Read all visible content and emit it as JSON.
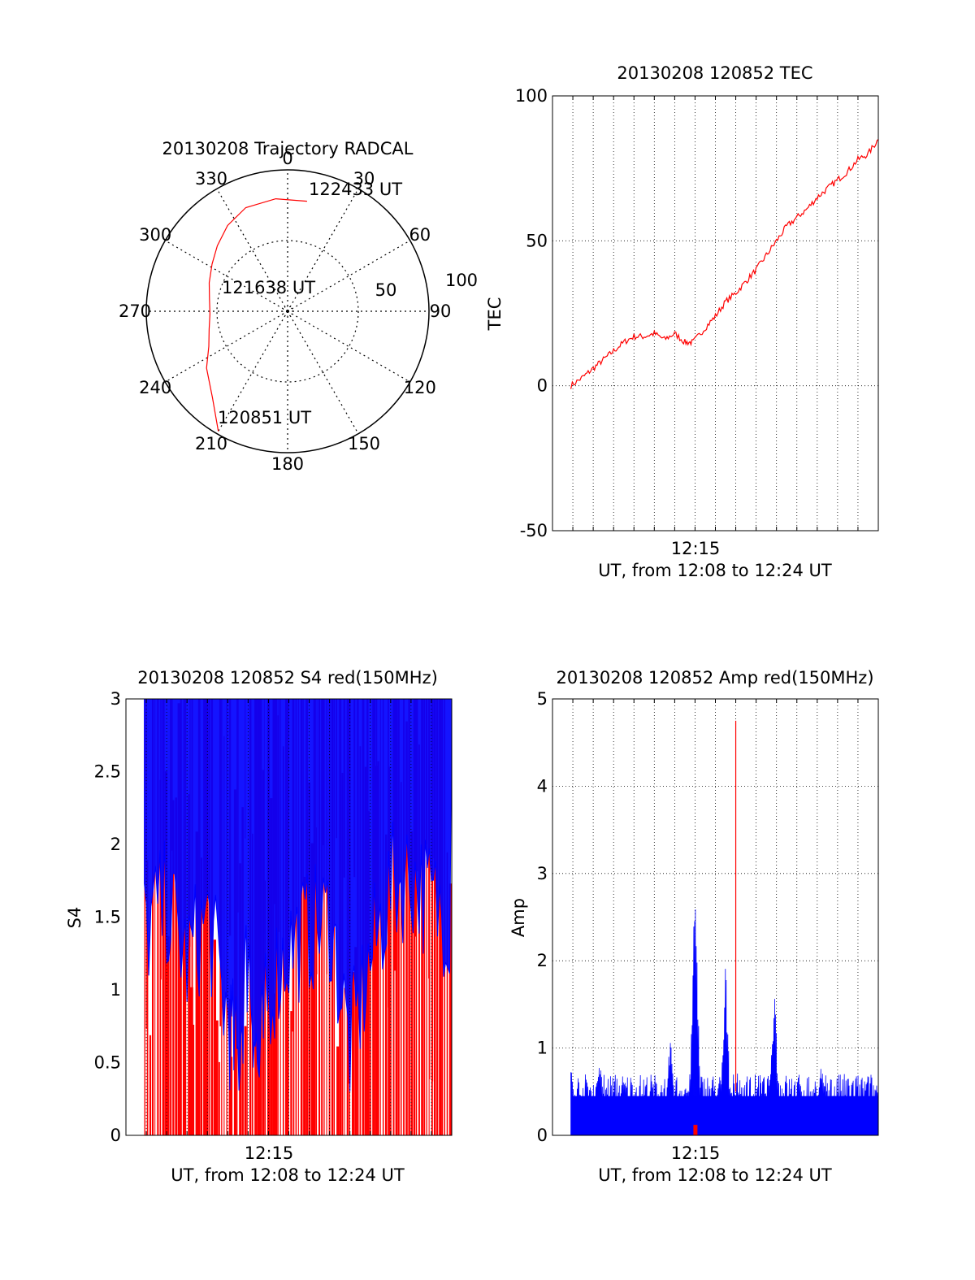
{
  "colors": {
    "primary": "#ff0000",
    "secondary": "#0000ff",
    "axis": "#000000",
    "grid": "#000000"
  },
  "chart_data": [
    {
      "type": "polar",
      "title": "20130208 Trajectory RADCAL",
      "azimuth_labels": [
        "0",
        "30",
        "60",
        "90",
        "120",
        "150",
        "180",
        "210",
        "240",
        "270",
        "300",
        "330"
      ],
      "radial_ticks": [
        "50",
        "100"
      ],
      "rlim": [
        0,
        100
      ],
      "grid": true,
      "annotations": [
        {
          "text": "122433 UT",
          "azimuth": 11,
          "range": 80
        },
        {
          "text": "121638 UT",
          "azimuth": 285,
          "range": 51
        },
        {
          "text": "120851 UT",
          "azimuth": 210,
          "range": 98
        }
      ],
      "series": [
        {
          "color": "#ff0000",
          "points": [
            [
              10,
              79
            ],
            [
              -6,
              80
            ],
            [
              -22,
              79
            ],
            [
              -35,
              74
            ],
            [
              -47,
              68
            ],
            [
              -58,
              63
            ],
            [
              -70,
              59
            ],
            [
              -81,
              56
            ],
            [
              -92,
              55
            ],
            [
              -103,
              57
            ],
            [
              -114,
              61
            ],
            [
              -125,
              70
            ],
            [
              -139,
              81
            ],
            [
              -150,
              98
            ]
          ]
        }
      ]
    },
    {
      "type": "line",
      "title": "20130208 120852 TEC",
      "ylabel": "TEC",
      "xlabel": "UT, from 12:08 to 12:24 UT",
      "x_tick_label": "12:15",
      "xlim": [
        0,
        16
      ],
      "ylim": [
        -50,
        100
      ],
      "y_ticks": [
        -50,
        0,
        50,
        100
      ],
      "grid": true,
      "series": [
        {
          "color": "#ff0000",
          "x": [
            0.9,
            1.5,
            2,
            2.5,
            3,
            3.5,
            4,
            4.5,
            5,
            5.5,
            6,
            6.5,
            6.9,
            7.5,
            8,
            8.5,
            9,
            9.5,
            10,
            10.5,
            11,
            11.5,
            12,
            12.5,
            13,
            13.5,
            14,
            14.5,
            15,
            15.5,
            16
          ],
          "y": [
            0,
            3,
            6,
            9,
            12,
            15,
            17,
            17,
            18,
            16,
            18,
            15,
            15,
            20,
            24,
            29,
            32,
            36,
            40,
            45,
            50,
            55,
            58,
            61,
            65,
            68,
            71,
            74,
            78,
            80,
            85
          ]
        }
      ]
    },
    {
      "type": "bar",
      "title": "20130208 120852 S4 red(150MHz)",
      "ylabel": "S4",
      "xlabel": "UT, from 12:08 to 12:24 UT",
      "x_tick_label": "12:15",
      "xlim": [
        0,
        16
      ],
      "ylim": [
        0,
        3
      ],
      "y_ticks": [
        "0",
        "0.5",
        "1",
        "1.5",
        "2",
        "2.5",
        "3"
      ],
      "grid": true,
      "series": [
        {
          "color": "#ff0000",
          "x_start": 0.9,
          "x_end": 16,
          "count": 120,
          "value_range": [
            0,
            3
          ]
        },
        {
          "color": "#0000ff",
          "x_start": 0.9,
          "x_end": 16,
          "envelope_x": [
            0.9,
            2,
            3,
            4,
            5,
            5.5,
            6,
            6.5,
            7,
            8,
            9,
            10,
            11,
            12,
            13,
            14,
            15,
            16
          ],
          "envelope_low": [
            1.4,
            1.6,
            1.2,
            1.5,
            0.8,
            0.5,
            1.3,
            0.4,
            1.0,
            1.3,
            1.4,
            1.5,
            0.6,
            1.2,
            1.7,
            1.8,
            1.6,
            1.5
          ]
        }
      ]
    },
    {
      "type": "bar",
      "title": "20130208 120852 Amp red(150MHz)",
      "ylabel": "Amp",
      "xlabel": "UT, from 12:08 to 12:24 UT",
      "x_tick_label": "12:15",
      "xlim": [
        0,
        16
      ],
      "ylim": [
        0,
        5
      ],
      "y_ticks": [
        "0",
        "1",
        "2",
        "3",
        "4",
        "5"
      ],
      "grid": true,
      "series": [
        {
          "color": "#0000ff",
          "x_start": 0.9,
          "x_end": 16,
          "baseline": 0.45,
          "peaks": [
            [
              0.9,
              0.9
            ],
            [
              2.3,
              1.1
            ],
            [
              5.8,
              1.3
            ],
            [
              7,
              3.1
            ],
            [
              8.5,
              2.0
            ],
            [
              10.9,
              1.8
            ],
            [
              13.2,
              0.9
            ]
          ]
        },
        {
          "color": "#ff0000",
          "peaks": [
            [
              9.0,
              4.75
            ]
          ]
        }
      ]
    }
  ]
}
